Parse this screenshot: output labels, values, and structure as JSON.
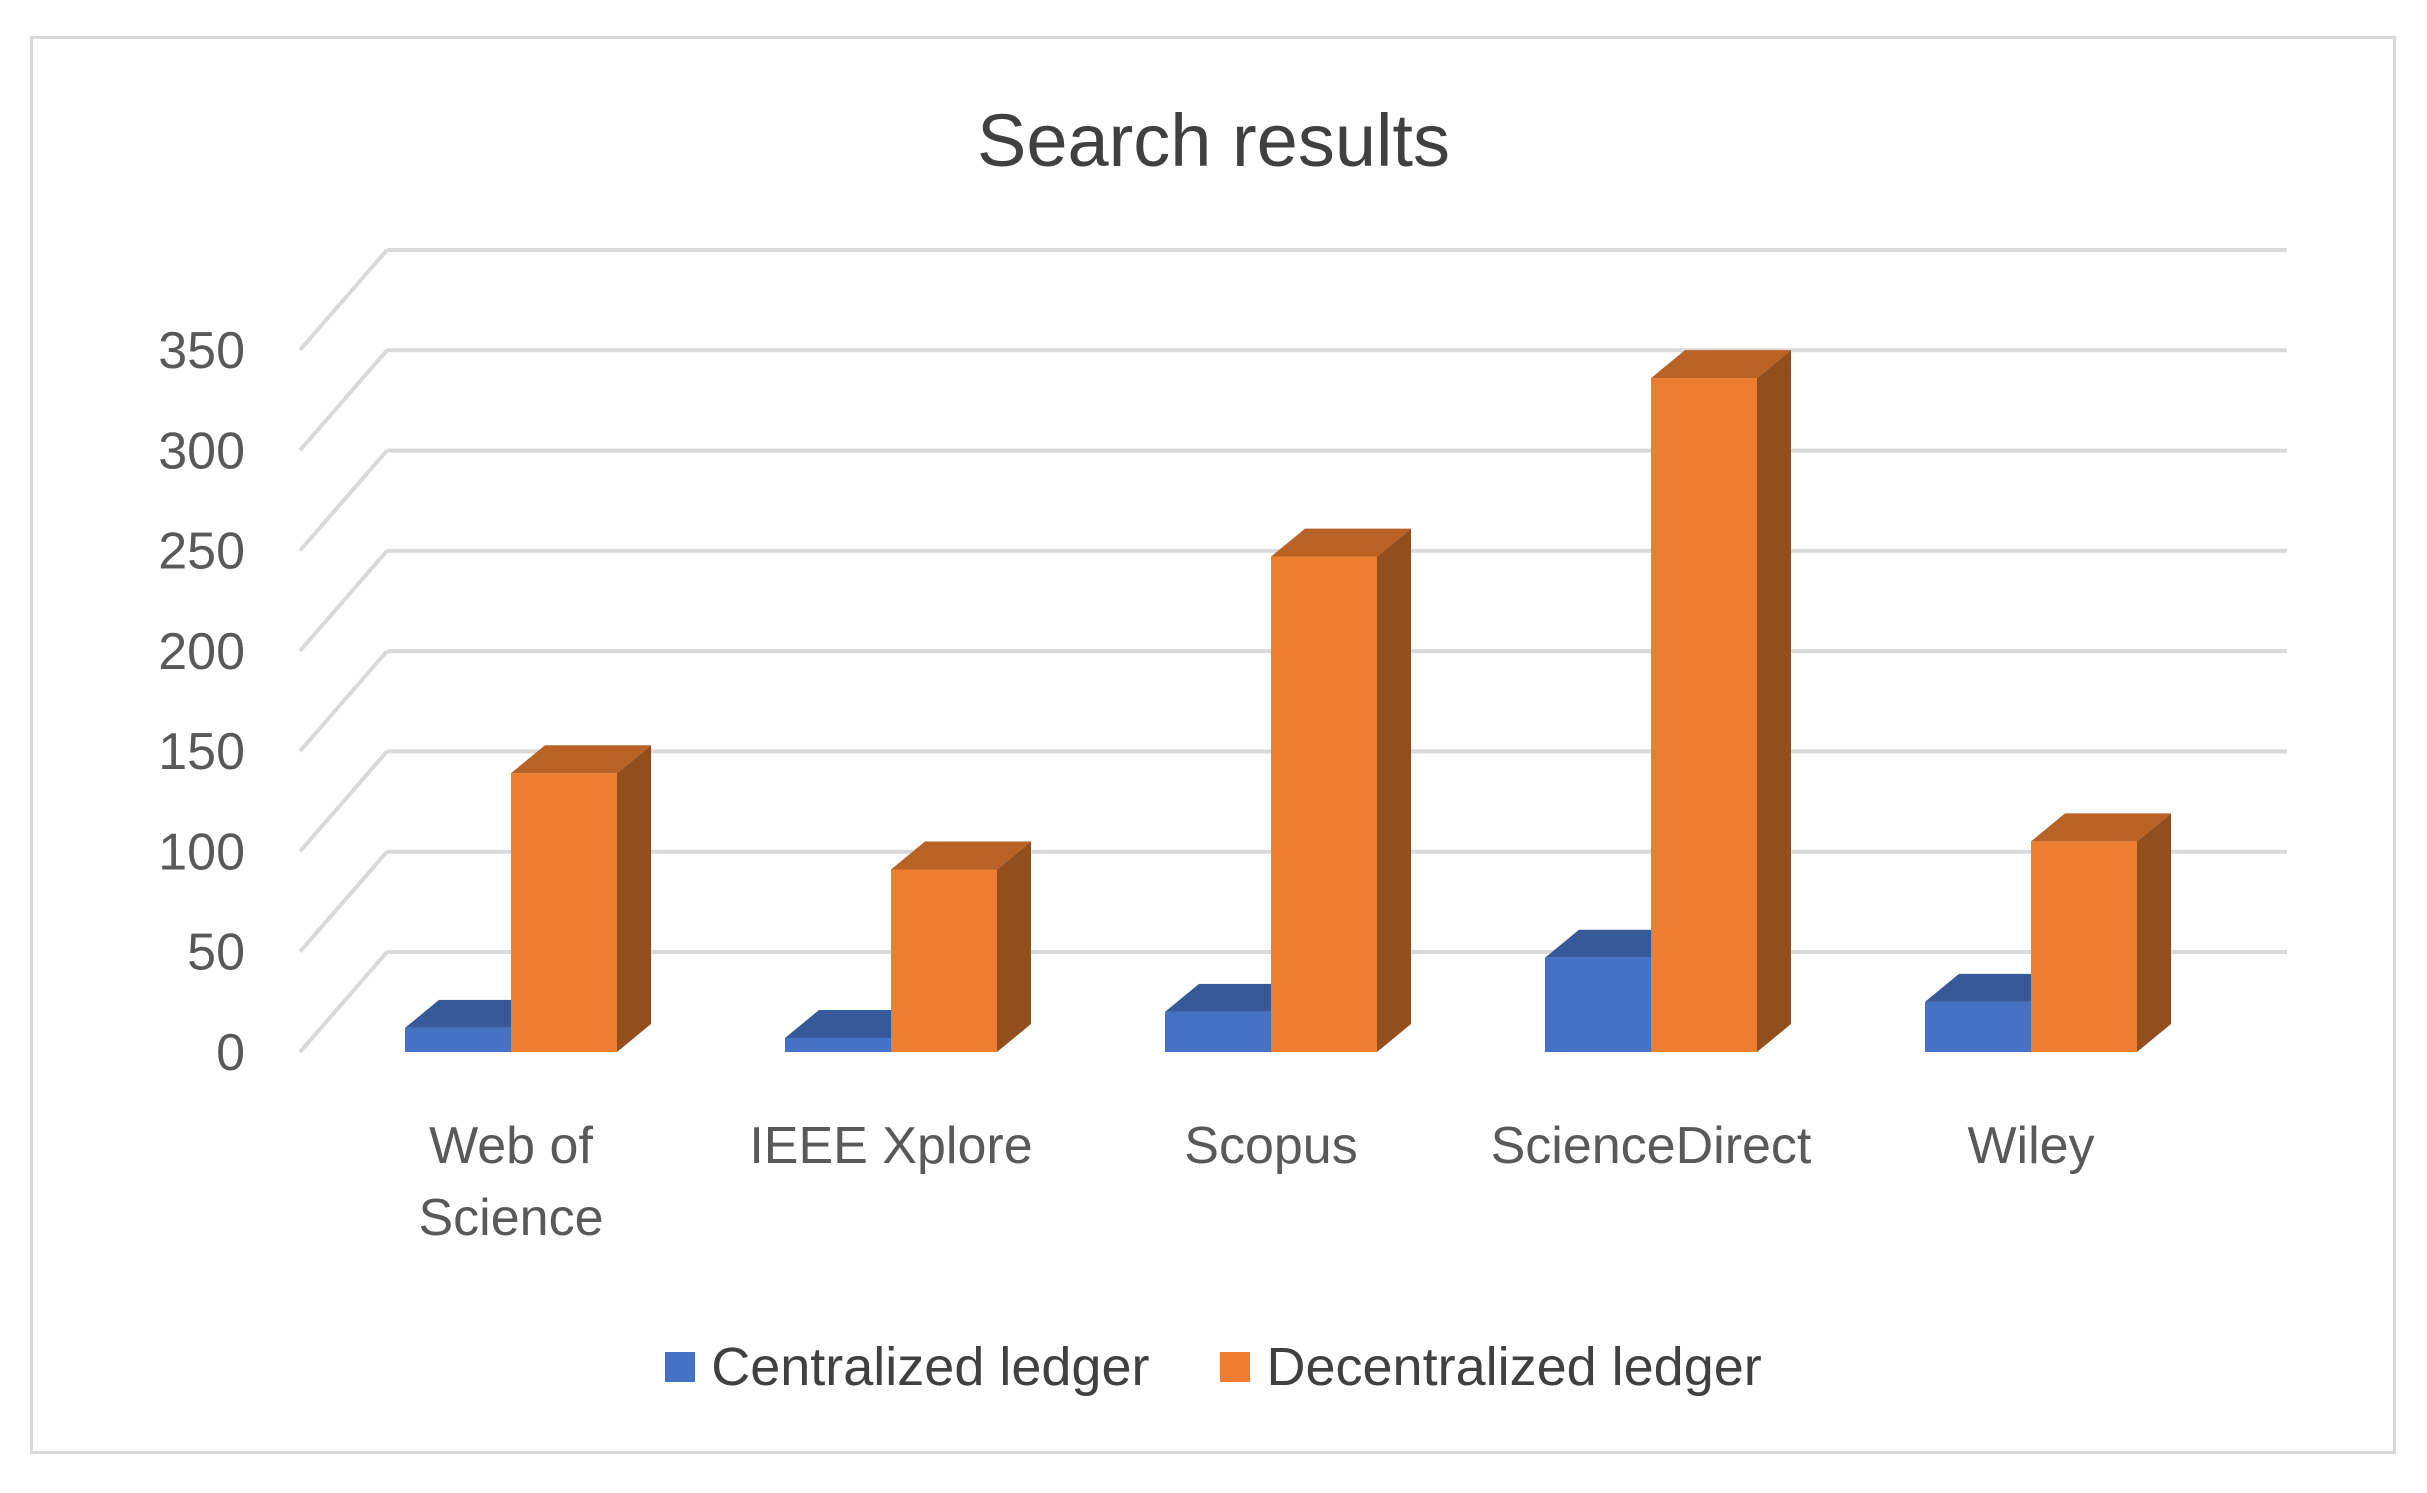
{
  "chart_data": {
    "type": "bar",
    "title": "Search results",
    "categories": [
      "Web of Science",
      "IEEE Xplore",
      "Scopus",
      "ScienceDirect",
      "Wiley"
    ],
    "category_lines": [
      [
        "Web of",
        "Science"
      ],
      [
        "IEEE Xplore"
      ],
      [
        "Scopus"
      ],
      [
        "ScienceDirect"
      ],
      [
        "Wiley"
      ]
    ],
    "series": [
      {
        "name": "Centralized ledger",
        "values": [
          12,
          7,
          20,
          47,
          25
        ],
        "color": "#4472c4"
      },
      {
        "name": "Decentralized ledger",
        "values": [
          139,
          91,
          247,
          336,
          105
        ],
        "color": "#ed7d31"
      }
    ],
    "ylim": [
      0,
      350
    ],
    "yticks": [
      0,
      50,
      100,
      150,
      200,
      250,
      300,
      350
    ],
    "grid": true,
    "legend_position": "bottom",
    "style": "3d-clustered-column"
  }
}
